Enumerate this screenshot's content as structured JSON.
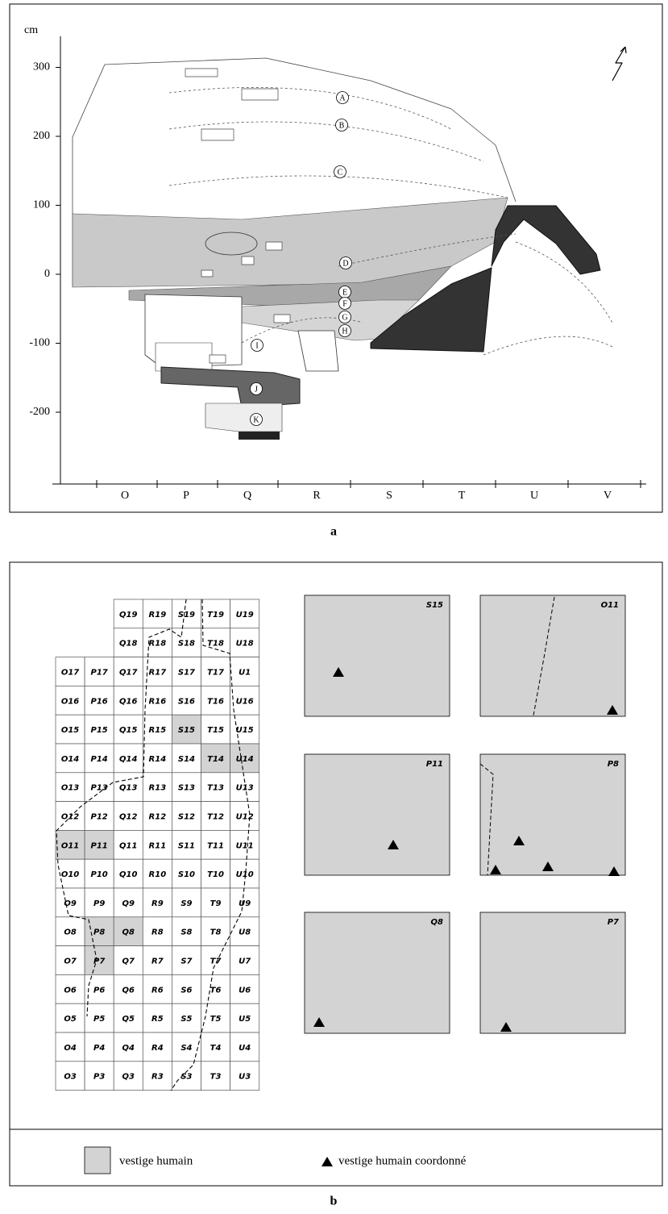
{
  "panel_a": {
    "label": "a",
    "y_unit": "cm",
    "y_ticks": [
      300,
      200,
      100,
      0,
      -100,
      -200
    ],
    "columns": [
      "O",
      "P",
      "Q",
      "R",
      "S",
      "T",
      "U",
      "V"
    ],
    "layers": [
      "A",
      "B",
      "C",
      "D",
      "E",
      "F",
      "G",
      "H",
      "I",
      "J",
      "K"
    ]
  },
  "panel_b": {
    "label": "b",
    "grid": {
      "rows": [
        [
          null,
          null,
          "Q19",
          "R19",
          "S19",
          "T19",
          "U19"
        ],
        [
          null,
          null,
          "Q18",
          "R18",
          "S18",
          "T18",
          "U18"
        ],
        [
          "O17",
          "P17",
          "Q17",
          "R17",
          "S17",
          "T17",
          "U1"
        ],
        [
          "O16",
          "P16",
          "Q16",
          "R16",
          "S16",
          "T16",
          "U16"
        ],
        [
          "O15",
          "P15",
          "Q15",
          "R15",
          "S15",
          "T15",
          "U15"
        ],
        [
          "O14",
          "P14",
          "Q14",
          "R14",
          "S14",
          "T14",
          "U14"
        ],
        [
          "O13",
          "P13",
          "Q13",
          "R13",
          "S13",
          "T13",
          "U13"
        ],
        [
          "O12",
          "P12",
          "Q12",
          "R12",
          "S12",
          "T12",
          "U12"
        ],
        [
          "O11",
          "P11",
          "Q11",
          "R11",
          "S11",
          "T11",
          "U11"
        ],
        [
          "O10",
          "P10",
          "Q10",
          "R10",
          "S10",
          "T10",
          "U10"
        ],
        [
          "O9",
          "P9",
          "Q9",
          "R9",
          "S9",
          "T9",
          "U9"
        ],
        [
          "O8",
          "P8",
          "Q8",
          "R8",
          "S8",
          "T8",
          "U8"
        ],
        [
          "O7",
          "P7",
          "Q7",
          "R7",
          "S7",
          "T7",
          "U7"
        ],
        [
          "O6",
          "P6",
          "Q6",
          "R6",
          "S6",
          "T6",
          "U6"
        ],
        [
          "O5",
          "P5",
          "Q5",
          "R5",
          "S5",
          "T5",
          "U5"
        ],
        [
          "O4",
          "P4",
          "Q4",
          "R4",
          "S4",
          "T4",
          "U4"
        ],
        [
          "O3",
          "P3",
          "Q3",
          "R3",
          "S3",
          "T3",
          "U3"
        ]
      ],
      "shaded": [
        "S15",
        "T14",
        "U14",
        "O11",
        "P11",
        "P8",
        "Q8",
        "P7"
      ]
    },
    "details": [
      "S15",
      "O11",
      "P11",
      "P8",
      "Q8",
      "P7"
    ],
    "legend": [
      "vestige humain",
      "vestige humain coordonné"
    ]
  }
}
